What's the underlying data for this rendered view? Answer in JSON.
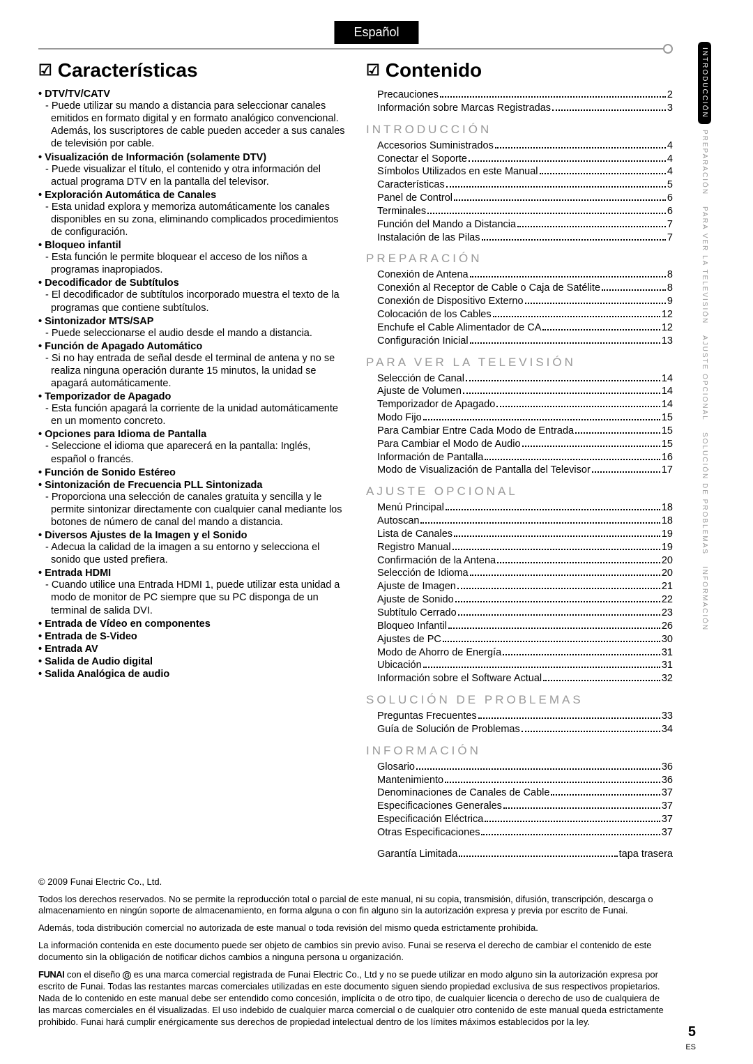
{
  "language_tab": "Español",
  "side_tabs": [
    {
      "label": "INTRODUCCIÓN",
      "active": true
    },
    {
      "label": "PREPARACIÓN",
      "active": false
    },
    {
      "label": "PARA VER LA TELEVISIÓN",
      "active": false
    },
    {
      "label": "AJUSTE OPCIONAL",
      "active": false
    },
    {
      "label": "SOLUCIÓN DE PROBLEMAS",
      "active": false
    },
    {
      "label": "INFORMACIÓN",
      "active": false
    }
  ],
  "features": {
    "title": "Características",
    "items": [
      {
        "head": "DTV/TV/CATV",
        "desc": "Puede utilizar su mando a distancia para seleccionar canales emitidos en formato digital y en formato analógico convencional. Además, los suscriptores de cable pueden acceder a sus canales de televisión por cable."
      },
      {
        "head": "Visualización de Información (solamente DTV)",
        "desc": "Puede visualizar el título, el contenido y otra información del actual programa DTV en la pantalla del televisor."
      },
      {
        "head": "Exploración Automática de Canales",
        "desc": "Esta unidad explora y memoriza automáticamente los canales disponibles en su zona, eliminando complicados procedimientos de configuración."
      },
      {
        "head": "Bloqueo infantil",
        "desc": "Esta función le permite bloquear el acceso de los niños a programas inapropiados."
      },
      {
        "head": "Decodificador de Subtítulos",
        "desc": "El decodificador de subtítulos incorporado muestra el texto de la programas que contiene subtítulos."
      },
      {
        "head": "Sintonizador MTS/SAP",
        "desc": "Puede seleccionarse el audio desde el mando a distancia."
      },
      {
        "head": "Función de Apagado Automático",
        "desc": "Si no hay entrada de señal desde el terminal de antena y no se realiza ninguna operación durante 15 minutos, la unidad se apagará automáticamente."
      },
      {
        "head": "Temporizador de Apagado",
        "desc": "Esta función apagará la corriente de la unidad automáticamente en un momento concreto."
      },
      {
        "head": "Opciones para Idioma de Pantalla",
        "desc": "Seleccione el idioma que aparecerá en la pantalla: Inglés, español o francés."
      },
      {
        "head": "Función de Sonido Estéreo",
        "desc": null
      },
      {
        "head": "Sintonización de Frecuencia PLL Sintonizada",
        "desc": "Proporciona una selección de canales gratuita y sencilla y le permite sintonizar directamente con cualquier canal mediante los botones de número de canal del mando a distancia."
      },
      {
        "head": "Diversos Ajustes de la Imagen y el Sonido",
        "desc": "Adecua la calidad de la imagen a su entorno y selecciona el sonido que usted prefiera."
      },
      {
        "head": "Entrada HDMI",
        "desc": "Cuando utilice una Entrada HDMI 1, puede utilizar esta unidad a modo de monitor de PC siempre que su PC disponga de un terminal de salida DVI."
      },
      {
        "head": "Entrada de Vídeo en componentes",
        "desc": null
      },
      {
        "head": "Entrada de S-Video",
        "desc": null
      },
      {
        "head": "Entrada AV",
        "desc": null
      },
      {
        "head": "Salida de Audio digital",
        "desc": null
      },
      {
        "head": "Salida Analógica de audio",
        "desc": null
      }
    ]
  },
  "toc": {
    "title": "Contenido",
    "pre_items": [
      {
        "label": "Precauciones",
        "page": "2"
      },
      {
        "label": "Información sobre Marcas Registradas",
        "page": "3"
      }
    ],
    "sections": [
      {
        "head": "INTRODUCCIÓN",
        "items": [
          {
            "label": "Accesorios Suministrados",
            "page": "4"
          },
          {
            "label": "Conectar el Soporte",
            "page": "4"
          },
          {
            "label": "Símbolos Utilizados en este Manual",
            "page": "4"
          },
          {
            "label": "Características",
            "page": "5"
          },
          {
            "label": "Panel de Control",
            "page": "6"
          },
          {
            "label": "Terminales",
            "page": "6"
          },
          {
            "label": "Función del Mando a Distancia",
            "page": "7"
          },
          {
            "label": "Instalación de las Pilas",
            "page": "7"
          }
        ]
      },
      {
        "head": "PREPARACIÓN",
        "items": [
          {
            "label": "Conexión de Antena",
            "page": "8"
          },
          {
            "label": "Conexión al Receptor de Cable o Caja de Satélite",
            "page": "8"
          },
          {
            "label": "Conexión de Dispositivo Externo",
            "page": "9"
          },
          {
            "label": "Colocación de los Cables",
            "page": "12"
          },
          {
            "label": "Enchufe el Cable Alimentador de CA",
            "page": "12"
          },
          {
            "label": "Configuración Inicial",
            "page": "13"
          }
        ]
      },
      {
        "head": "PARA VER LA TELEVISIÓN",
        "items": [
          {
            "label": "Selección de Canal",
            "page": "14"
          },
          {
            "label": "Ajuste de Volumen",
            "page": "14"
          },
          {
            "label": "Temporizador de Apagado",
            "page": "14"
          },
          {
            "label": "Modo Fijo",
            "page": "15"
          },
          {
            "label": "Para Cambiar Entre Cada Modo de Entrada",
            "page": "15"
          },
          {
            "label": "Para Cambiar el Modo de Audio",
            "page": "15"
          },
          {
            "label": "Información de Pantalla",
            "page": "16"
          },
          {
            "label": "Modo de Visualización de Pantalla del Televisor",
            "page": "17"
          }
        ]
      },
      {
        "head": "AJUSTE OPCIONAL",
        "items": [
          {
            "label": "Menú Principal",
            "page": "18"
          },
          {
            "label": "Autoscan",
            "page": "18"
          },
          {
            "label": "Lista de Canales",
            "page": "19"
          },
          {
            "label": "Registro Manual",
            "page": "19"
          },
          {
            "label": "Confirmación de la Antena",
            "page": "20"
          },
          {
            "label": "Selección de Idioma",
            "page": "20"
          },
          {
            "label": "Ajuste de Imagen",
            "page": "21"
          },
          {
            "label": "Ajuste de Sonido",
            "page": "22"
          },
          {
            "label": "Subtítulo Cerrado",
            "page": "23"
          },
          {
            "label": "Bloqueo Infantil",
            "page": "26"
          },
          {
            "label": "Ajustes de PC",
            "page": "30"
          },
          {
            "label": "Modo de Ahorro de Energía",
            "page": "31"
          },
          {
            "label": "Ubicación",
            "page": "31"
          },
          {
            "label": "Información sobre el Software Actual",
            "page": "32"
          }
        ]
      },
      {
        "head": "SOLUCIÓN DE PROBLEMAS",
        "items": [
          {
            "label": "Preguntas Frecuentes",
            "page": "33"
          },
          {
            "label": "Guía de Solución de Problemas",
            "page": "34"
          }
        ]
      },
      {
        "head": "INFORMACIÓN",
        "items": [
          {
            "label": "Glosario",
            "page": "36"
          },
          {
            "label": "Mantenimiento",
            "page": "36"
          },
          {
            "label": "Denominaciones de Canales de Cable",
            "page": "37"
          },
          {
            "label": "Especificaciones Generales",
            "page": "37"
          },
          {
            "label": "Especificación Eléctrica",
            "page": "37"
          },
          {
            "label": "Otras Especificaciones",
            "page": "37"
          }
        ]
      }
    ],
    "post_items": [
      {
        "label": "Garantía Limitada",
        "page": "tapa trasera"
      }
    ]
  },
  "footer": {
    "copyright": "© 2009 Funai Electric Co., Ltd.",
    "p1": "Todos los derechos reservados. No se permite la reproducción total o parcial de este manual, ni su copia, transmisión, difusión, transcripción, descarga o almacenamiento en ningún soporte de almacenamiento, en forma alguna o con fin alguno sin la autorización expresa y previa por escrito de Funai.",
    "p2": "Además, toda distribución comercial no autorizada de este manual o toda revisión del mismo queda estrictamente prohibida.",
    "p3": "La información contenida en este documento puede ser objeto de cambios sin previo aviso. Funai se reserva el derecho de cambiar el contenido de este documento sin la obligación de notificar dichos cambios a ninguna persona u organización.",
    "p4a": "FUNAI",
    "p4b": " con el diseño ",
    "p4c": " es una marca comercial registrada de Funai Electric Co., Ltd y no se puede utilizar en modo alguno sin la autorización expresa por escrito de Funai. Todas las restantes marcas comerciales utilizadas en este documento siguen siendo propiedad exclusiva de sus respectivos propietarios. Nada de lo contenido en este manual debe ser entendido como concesión, implícita o de otro tipo, de cualquier licencia o derecho de uso de cualquiera de las marcas comerciales en él visualizadas. El uso indebido de cualquier marca comercial o de cualquier otro contenido de este manual queda estrictamente prohibido. Funai hará cumplir enérgicamente sus derechos de propiedad intelectual dentro de los límites máximos establecidos por la ley."
  },
  "page_number": "5",
  "page_lang": "ES"
}
